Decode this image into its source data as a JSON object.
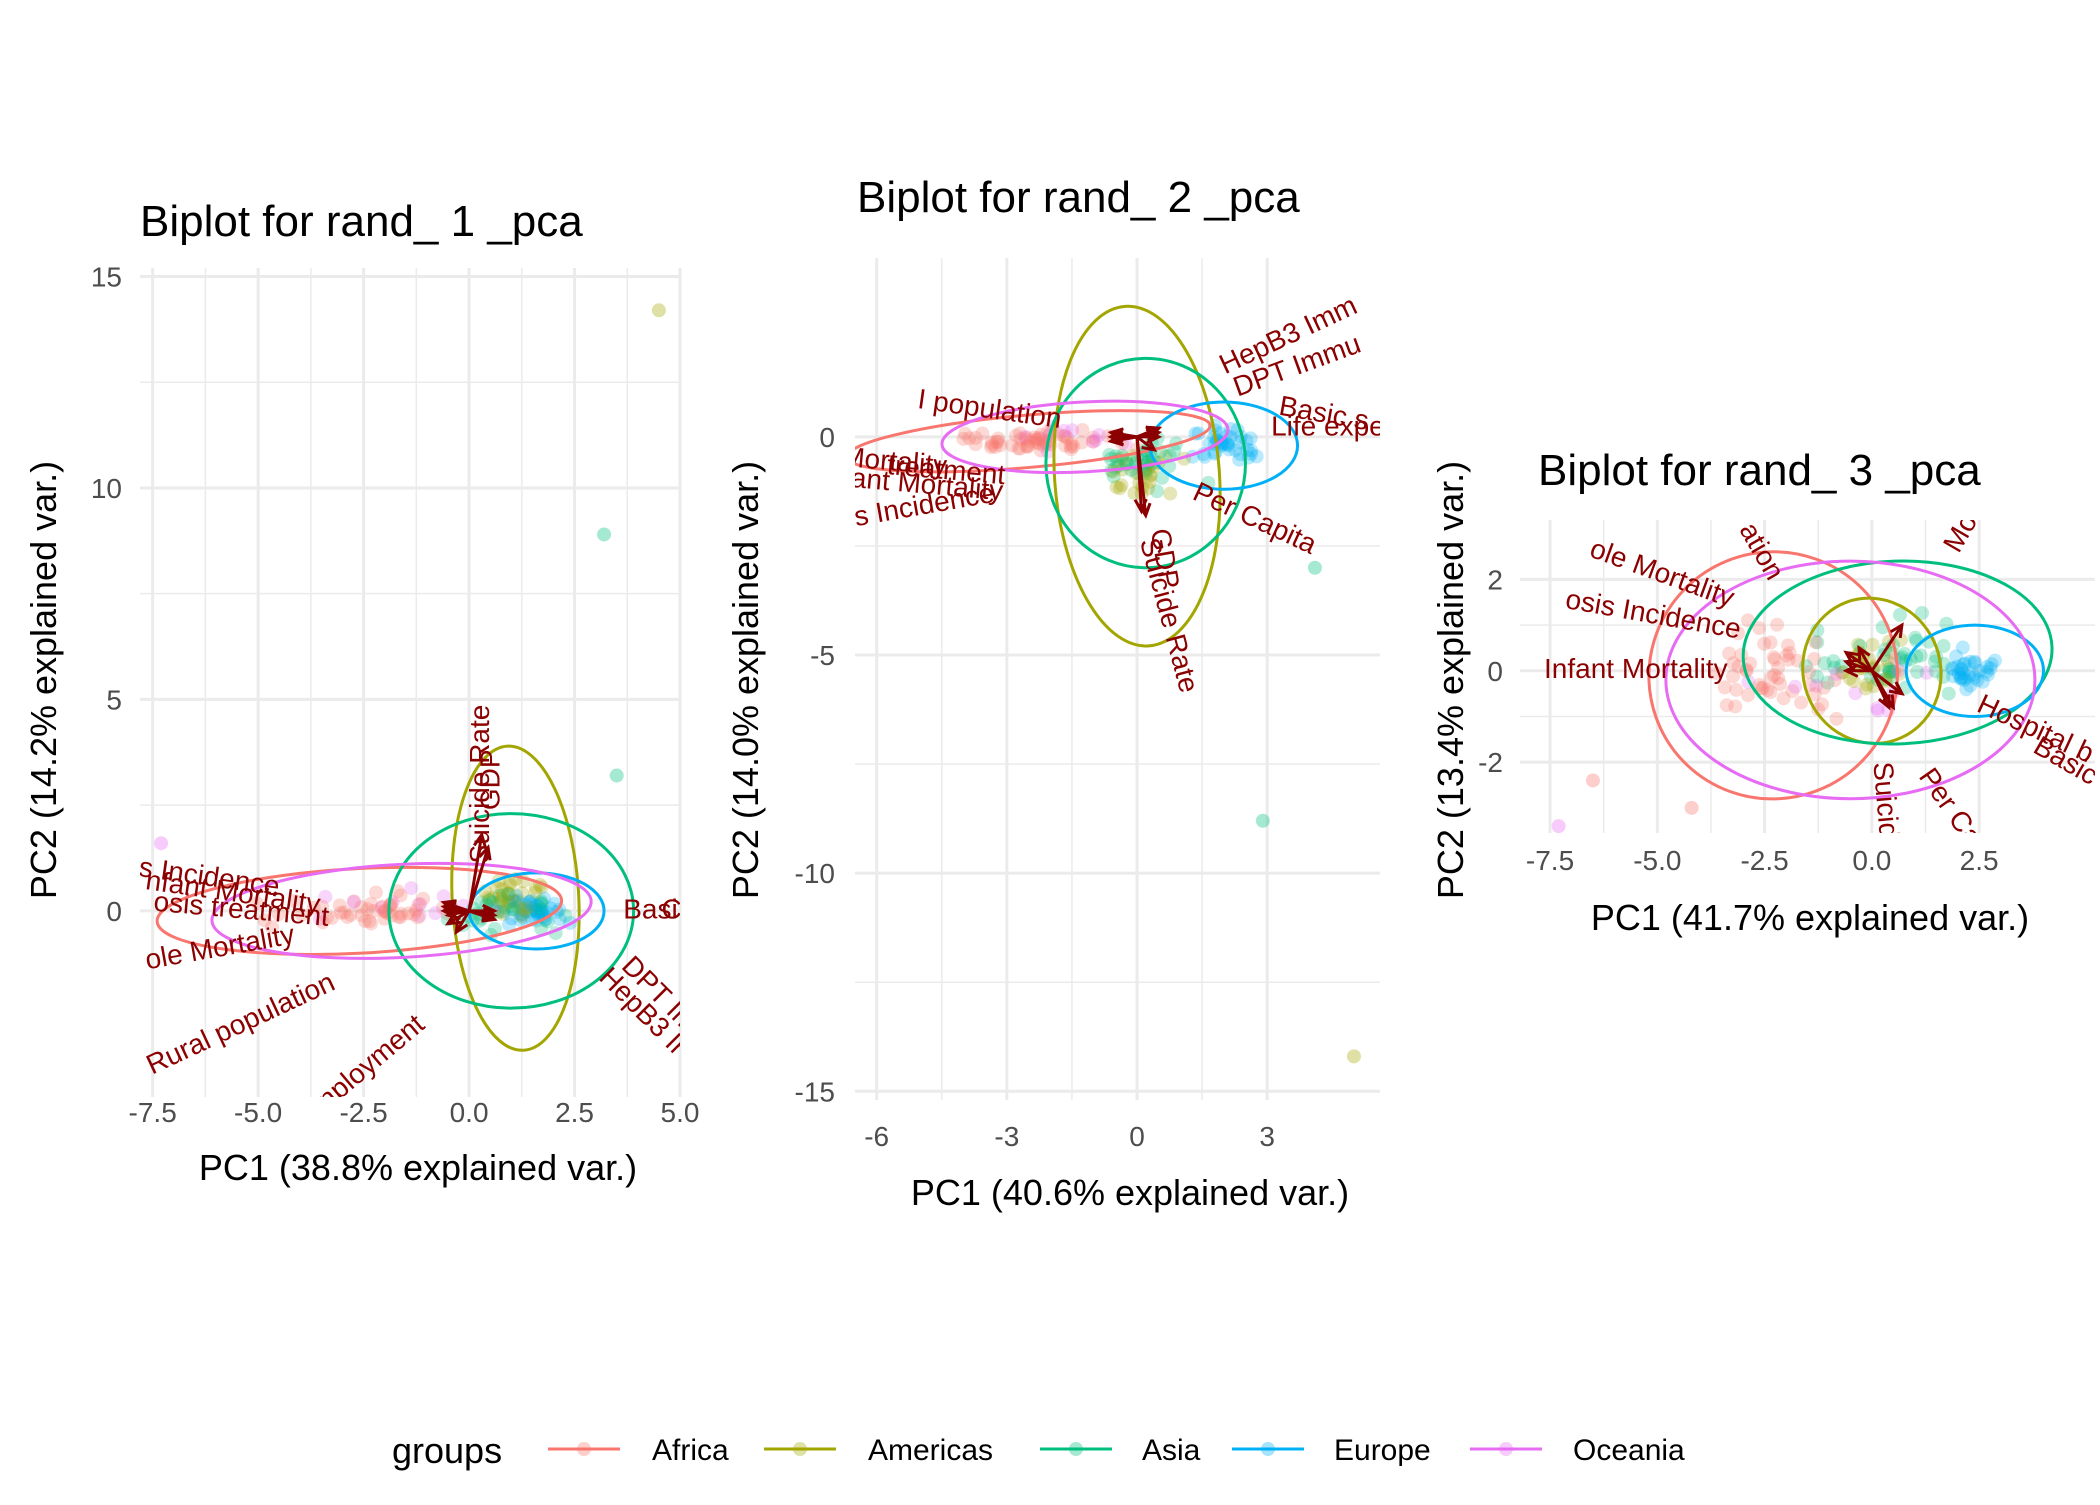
{
  "colors": {
    "Africa": "#F8766D",
    "Americas": "#A3A500",
    "Asia": "#00BF7D",
    "Europe": "#00B0F6",
    "Oceania": "#E76BF3",
    "arrow": "#8B0000",
    "grid": "#EBEBEB"
  },
  "legend": {
    "title": "groups",
    "items": [
      "Africa",
      "Americas",
      "Asia",
      "Europe",
      "Oceania"
    ]
  },
  "chart_data": [
    {
      "type": "scatter",
      "title": "Biplot for rand_ 1 _pca",
      "xlabel": "PC1 (38.8% explained var.)",
      "ylabel": "PC2 (14.2% explained var.)",
      "xlim": [
        -7.8,
        5.0
      ],
      "ylim": [
        -4.4,
        15.2
      ],
      "x_ticks": [
        -7.5,
        -5.0,
        -2.5,
        0.0,
        2.5,
        5.0
      ],
      "x_tick_labels": [
        "-7.5",
        "-5.0",
        "-2.5",
        "0.0",
        "2.5",
        "5.0"
      ],
      "y_ticks": [
        0,
        5,
        10,
        15
      ],
      "y_tick_labels": [
        "0",
        "5",
        "10",
        "15"
      ],
      "grid": true,
      "ellipses": [
        {
          "group": "Africa",
          "cx": -2.6,
          "cy": 0.0,
          "rx": 4.8,
          "ry": 1.0,
          "angle": -3
        },
        {
          "group": "Americas",
          "cx": 1.1,
          "cy": 0.3,
          "rx": 1.5,
          "ry": 3.6,
          "angle": -3
        },
        {
          "group": "Asia",
          "cx": 1.0,
          "cy": 0.0,
          "rx": 2.9,
          "ry": 2.3,
          "angle": 0
        },
        {
          "group": "Europe",
          "cx": 1.6,
          "cy": 0.0,
          "rx": 1.6,
          "ry": 0.9,
          "angle": 0
        },
        {
          "group": "Oceania",
          "cx": -1.6,
          "cy": 0.0,
          "rx": 4.5,
          "ry": 1.1,
          "angle": -3
        }
      ],
      "outliers": [
        {
          "group": "Americas",
          "x": 4.5,
          "y": 14.2
        },
        {
          "group": "Asia",
          "x": 3.2,
          "y": 8.9
        },
        {
          "group": "Asia",
          "x": 3.5,
          "y": 3.2
        },
        {
          "group": "Oceania",
          "x": -7.3,
          "y": 1.6
        }
      ],
      "cloud": {
        "x": [
          -6.8,
          3.4
        ],
        "y": [
          -1.0,
          1.4
        ]
      },
      "arrows": [
        {
          "label": "Suicide Rate",
          "x": 0.3,
          "y": 1.8,
          "lx": 0.3,
          "ly": 3.0,
          "angle": -90
        },
        {
          "label": "GDP",
          "x": 0.45,
          "y": 1.5,
          "lx": 0.55,
          "ly": 3.1,
          "angle": -90
        },
        {
          "label": "sis Incidence",
          "x": -0.6,
          "y": 0.2,
          "lx": -6.4,
          "ly": 0.8,
          "angle": 8
        },
        {
          "label": "nfant Mortality",
          "x": -0.6,
          "y": 0.1,
          "lx": -5.6,
          "ly": 0.4,
          "angle": 8
        },
        {
          "label": "osis treatment",
          "x": -0.6,
          "y": 0.0,
          "lx": -5.4,
          "ly": 0.0,
          "angle": 5
        },
        {
          "label": "ole Mortality",
          "x": -0.5,
          "y": -0.1,
          "lx": -5.9,
          "ly": -0.9,
          "angle": -10
        },
        {
          "label": "Rural population",
          "x": -0.5,
          "y": -0.3,
          "lx": -5.4,
          "ly": -2.7,
          "angle": -25
        },
        {
          "label": "nployment",
          "x": -0.3,
          "y": -0.5,
          "lx": -2.3,
          "ly": -3.6,
          "angle": -40
        },
        {
          "label": "Basi",
          "x": 0.6,
          "y": 0.0,
          "lx": 4.3,
          "ly": 0.0,
          "angle": 0
        },
        {
          "label": "C",
          "x": 0.6,
          "y": -0.1,
          "lx": 4.8,
          "ly": 0.0,
          "angle": 0
        },
        {
          "label": "HepB3 Ir",
          "x": 0.6,
          "y": -0.2,
          "lx": 4.1,
          "ly": -2.4,
          "angle": 45
        },
        {
          "label": "DPT Im",
          "x": 0.6,
          "y": -0.2,
          "lx": 4.5,
          "ly": -2.0,
          "angle": 45
        }
      ]
    },
    {
      "type": "scatter",
      "title": "Biplot for rand_ 2 _pca",
      "xlabel": "PC1 (40.6% explained var.)",
      "ylabel": "PC2 (14.0% explained var.)",
      "xlim": [
        -6.5,
        5.6
      ],
      "ylim": [
        -15.2,
        4.1
      ],
      "x_ticks": [
        -6,
        -3,
        0,
        3
      ],
      "x_tick_labels": [
        "-6",
        "-3",
        "0",
        "3"
      ],
      "y_ticks": [
        0,
        -5,
        -10,
        -15
      ],
      "y_tick_labels": [
        "0",
        "-5",
        "-10",
        "-15"
      ],
      "grid": true,
      "ellipses": [
        {
          "group": "Africa",
          "cx": -2.5,
          "cy": -0.1,
          "rx": 4.2,
          "ry": 0.6,
          "angle": -5
        },
        {
          "group": "Americas",
          "cx": 0.0,
          "cy": -0.9,
          "rx": 1.9,
          "ry": 3.9,
          "angle": -4
        },
        {
          "group": "Asia",
          "cx": 0.2,
          "cy": -0.6,
          "rx": 2.3,
          "ry": 2.4,
          "angle": 0
        },
        {
          "group": "Europe",
          "cx": 2.0,
          "cy": -0.2,
          "rx": 1.7,
          "ry": 1.0,
          "angle": 0
        },
        {
          "group": "Oceania",
          "cx": -1.2,
          "cy": 0.0,
          "rx": 3.3,
          "ry": 0.8,
          "angle": -3
        }
      ],
      "outliers": [
        {
          "group": "Americas",
          "x": 5.0,
          "y": -14.2
        },
        {
          "group": "Asia",
          "x": 2.9,
          "y": -8.8
        },
        {
          "group": "Asia",
          "x": 4.1,
          "y": -3.0
        }
      ],
      "cloud": {
        "x": [
          -6.4,
          3.4
        ],
        "y": [
          -1.3,
          1.2
        ]
      },
      "arrows": [
        {
          "label": "I population",
          "x": -0.6,
          "y": 0.1,
          "lx": -3.4,
          "ly": 0.6,
          "angle": 8
        },
        {
          "label": "Mortality",
          "x": -0.6,
          "y": 0.0,
          "lx": -5.6,
          "ly": -0.6,
          "angle": 5
        },
        {
          "label": "Infant Mortality",
          "x": -0.6,
          "y": 0.0,
          "lx": -5.2,
          "ly": -1.1,
          "angle": 5
        },
        {
          "label": "treatment",
          "x": -0.6,
          "y": -0.1,
          "lx": -4.4,
          "ly": -0.8,
          "angle": 5
        },
        {
          "label": "s Incidence",
          "x": -0.6,
          "y": -0.1,
          "lx": -4.9,
          "ly": -1.6,
          "angle": -10
        },
        {
          "label": "HepB3 Imm",
          "x": 0.5,
          "y": 0.2,
          "lx": 3.5,
          "ly": 2.3,
          "angle": -25
        },
        {
          "label": "DPT Immu",
          "x": 0.5,
          "y": 0.2,
          "lx": 3.7,
          "ly": 1.6,
          "angle": -20
        },
        {
          "label": "Basic s",
          "x": 0.5,
          "y": 0.1,
          "lx": 4.3,
          "ly": 0.5,
          "angle": 10
        },
        {
          "label": "Life expe",
          "x": 0.5,
          "y": 0.0,
          "lx": 4.4,
          "ly": 0.2,
          "angle": 0
        },
        {
          "label": "Per Capita",
          "x": 0.4,
          "y": -0.3,
          "lx": 2.7,
          "ly": -1.9,
          "angle": 25
        },
        {
          "label": "Suicide Rate",
          "x": 0.2,
          "y": -1.8,
          "lx": 0.7,
          "ly": -4.1,
          "angle": 75
        },
        {
          "label": "GDP",
          "x": 0.1,
          "y": -1.7,
          "lx": 0.6,
          "ly": -2.8,
          "angle": 80
        }
      ]
    },
    {
      "type": "scatter",
      "title": "Biplot for rand_ 3 _pca",
      "xlabel": "PC1 (41.7% explained var.)",
      "ylabel": "PC2 (13.4% explained var.)",
      "xlim": [
        -8.2,
        5.2
      ],
      "ylim": [
        -3.55,
        3.3
      ],
      "x_ticks": [
        -7.5,
        -5.0,
        -2.5,
        0.0,
        2.5
      ],
      "x_tick_labels": [
        "-7.5",
        "-5.0",
        "-2.5",
        "0.0",
        "2.5"
      ],
      "y_ticks": [
        2,
        0,
        -2
      ],
      "y_tick_labels": [
        "2",
        "0",
        "-2"
      ],
      "grid": true,
      "ellipses": [
        {
          "group": "Africa",
          "cx": -2.3,
          "cy": -0.1,
          "rx": 2.9,
          "ry": 2.7,
          "angle": -25
        },
        {
          "group": "Americas",
          "cx": 0.0,
          "cy": 0.0,
          "rx": 1.6,
          "ry": 1.6,
          "angle": -20
        },
        {
          "group": "Asia",
          "cx": 0.6,
          "cy": 0.4,
          "rx": 3.6,
          "ry": 2.0,
          "angle": -2
        },
        {
          "group": "Europe",
          "cx": 2.4,
          "cy": 0.0,
          "rx": 1.6,
          "ry": 1.0,
          "angle": 0
        },
        {
          "group": "Oceania",
          "cx": -0.5,
          "cy": -0.2,
          "rx": 4.3,
          "ry": 2.6,
          "angle": 0
        }
      ],
      "outliers": [
        {
          "group": "Oceania",
          "x": -7.3,
          "y": -3.4
        },
        {
          "group": "Africa",
          "x": -6.5,
          "y": -2.4
        },
        {
          "group": "Africa",
          "x": -4.2,
          "y": -3.0
        }
      ],
      "cloud": {
        "x": [
          -7.0,
          4.8
        ],
        "y": [
          -2.6,
          2.5
        ]
      },
      "arrows": [
        {
          "label": "ole Mortality",
          "x": -0.6,
          "y": 0.4,
          "lx": -4.9,
          "ly": 2.1,
          "angle": 20
        },
        {
          "label": "osis Incidence",
          "x": -0.6,
          "y": 0.2,
          "lx": -5.1,
          "ly": 1.2,
          "angle": 10
        },
        {
          "label": "Infant Mortality",
          "x": -0.6,
          "y": 0.0,
          "lx": -5.5,
          "ly": 0.0,
          "angle": 0
        },
        {
          "label": "ation",
          "x": -0.3,
          "y": 0.5,
          "lx": -2.6,
          "ly": 2.6,
          "angle": 60
        },
        {
          "label": "Mo",
          "x": 0.7,
          "y": 1.0,
          "lx": 2.1,
          "ly": 3.0,
          "angle": -60
        },
        {
          "label": "Hospital b",
          "x": 0.7,
          "y": -0.5,
          "lx": 3.8,
          "ly": -1.3,
          "angle": 25
        },
        {
          "label": "Basic",
          "x": 0.7,
          "y": -0.5,
          "lx": 4.5,
          "ly": -2.0,
          "angle": 30
        },
        {
          "label": "Suicide",
          "x": 0.4,
          "y": -0.8,
          "lx": 0.3,
          "ly": -3.0,
          "angle": 85
        },
        {
          "label": "Per Ca",
          "x": 0.5,
          "y": -0.8,
          "lx": 1.8,
          "ly": -3.0,
          "angle": 55
        }
      ]
    }
  ]
}
